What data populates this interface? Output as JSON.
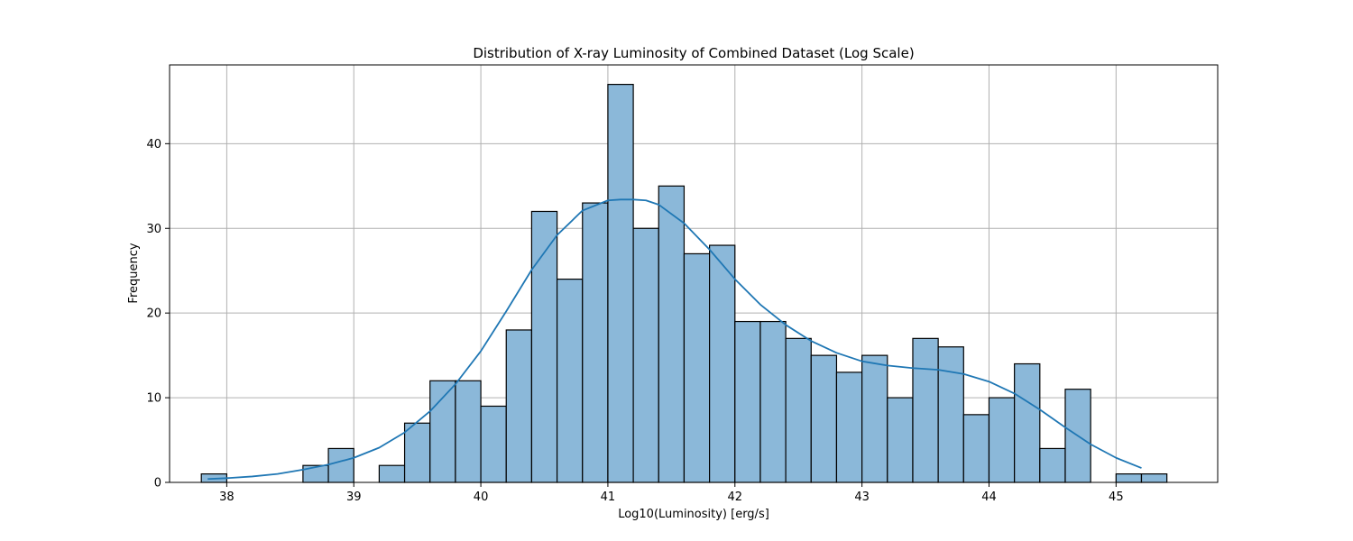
{
  "chart_data": {
    "type": "bar",
    "title": "Distribution of X-ray Luminosity of Combined Dataset (Log Scale)",
    "xlabel": "Log10(Luminosity) [erg/s]",
    "ylabel": "Frequency",
    "xlim": [
      37.55,
      45.8
    ],
    "ylim": [
      0,
      49.3
    ],
    "grid": true,
    "bar_color": "#8bb8d9",
    "bar_edge_color": "#000000",
    "kde_color": "#1f77b4",
    "grid_color": "#b0b0b0",
    "x_ticks": [
      38,
      39,
      40,
      41,
      42,
      43,
      44,
      45
    ],
    "y_ticks": [
      0,
      10,
      20,
      30,
      40
    ],
    "bin_edges_start": 37.8,
    "bin_width": 0.2,
    "counts": [
      1,
      0,
      0,
      0,
      2,
      4,
      0,
      2,
      7,
      12,
      12,
      9,
      18,
      32,
      24,
      33,
      47,
      30,
      35,
      27,
      28,
      19,
      19,
      17,
      15,
      13,
      15,
      10,
      17,
      16,
      8,
      10,
      14,
      4,
      11,
      0,
      1,
      1
    ],
    "kde_curve": {
      "x": [
        37.85,
        38.0,
        38.2,
        38.4,
        38.6,
        38.8,
        39.0,
        39.2,
        39.4,
        39.6,
        39.8,
        40.0,
        40.2,
        40.4,
        40.6,
        40.8,
        41.0,
        41.1,
        41.2,
        41.3,
        41.4,
        41.6,
        41.8,
        42.0,
        42.2,
        42.4,
        42.6,
        42.8,
        43.0,
        43.2,
        43.4,
        43.6,
        43.8,
        44.0,
        44.2,
        44.4,
        44.6,
        44.8,
        45.0,
        45.2
      ],
      "y": [
        0.4,
        0.5,
        0.7,
        1.0,
        1.5,
        2.1,
        2.9,
        4.1,
        5.9,
        8.4,
        11.6,
        15.5,
        20.2,
        25.1,
        29.2,
        32.1,
        33.3,
        33.4,
        33.4,
        33.3,
        32.8,
        30.6,
        27.5,
        24.0,
        21.0,
        18.6,
        16.7,
        15.3,
        14.3,
        13.8,
        13.5,
        13.3,
        12.8,
        11.9,
        10.5,
        8.6,
        6.5,
        4.5,
        2.9,
        1.7
      ]
    }
  }
}
